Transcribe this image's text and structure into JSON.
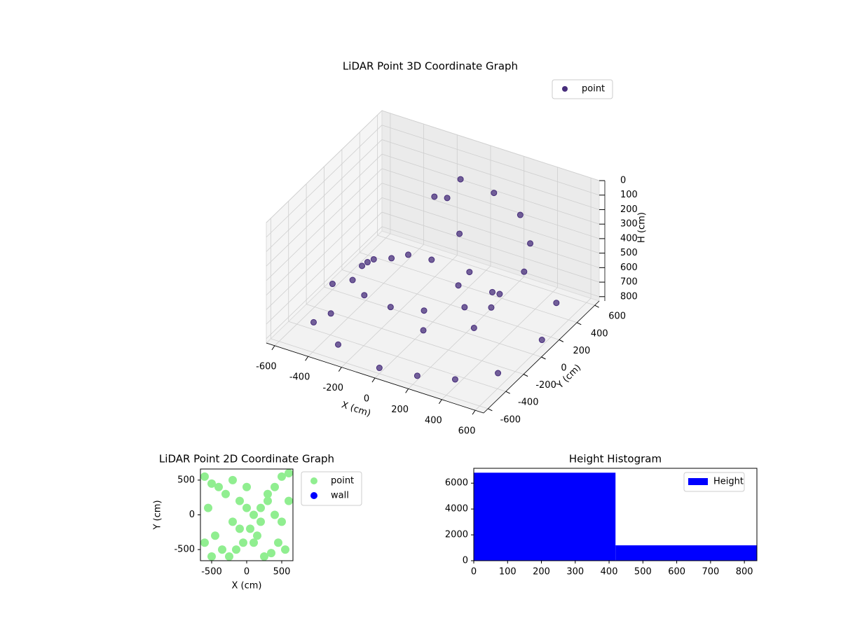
{
  "chart_data": [
    {
      "type": "scatter3d",
      "title": "LiDAR Point 3D Coordinate Graph",
      "xlabel": "X (cm)",
      "ylabel": "Y (cm)",
      "zlabel": "H (cm)",
      "xlim": [
        -650,
        650
      ],
      "ylim": [
        -650,
        650
      ],
      "zlim": [
        0,
        830
      ],
      "z_inverted": true,
      "xticks": [
        -600,
        -400,
        -200,
        0,
        200,
        400,
        600
      ],
      "yticks": [
        -600,
        -400,
        -200,
        0,
        200,
        400,
        600
      ],
      "zticks": [
        0,
        100,
        200,
        300,
        400,
        500,
        600,
        700,
        800
      ],
      "grid": true,
      "legend": "upper right",
      "series": [
        {
          "name": "point",
          "color": "#472d7b",
          "x": [
            -100,
            100,
            300,
            450,
            520,
            480,
            350,
            150,
            -50,
            -250,
            -400,
            -450,
            -380,
            -220,
            -20,
            -500,
            -300,
            0,
            200,
            400,
            550,
            600,
            500,
            -600,
            -550,
            100,
            -200,
            0,
            250,
            -300,
            -150,
            -100,
            50,
            300,
            -450,
            350
          ],
          "y": [
            500,
            500,
            420,
            250,
            50,
            -150,
            -300,
            -380,
            -380,
            -300,
            -150,
            50,
            250,
            400,
            450,
            -400,
            -500,
            -600,
            -550,
            -500,
            -300,
            100,
            450,
            0,
            300,
            100,
            100,
            300,
            200,
            -100,
            300,
            350,
            -200,
            -100,
            -300,
            0
          ],
          "z": [
            180,
            200,
            230,
            270,
            320,
            370,
            420,
            470,
            520,
            560,
            600,
            640,
            680,
            720,
            760,
            780,
            800,
            790,
            800,
            780,
            800,
            790,
            780,
            790,
            800,
            600,
            500,
            400,
            650,
            450,
            200,
            220,
            750,
            700,
            760,
            600
          ]
        }
      ]
    },
    {
      "type": "scatter",
      "title": "LiDAR Point 2D Coordinate Graph",
      "xlabel": "X (cm)",
      "ylabel": "Y (cm)",
      "xlim": [
        -660,
        660
      ],
      "ylim": [
        -660,
        660
      ],
      "xticks": [
        -500,
        0,
        500
      ],
      "yticks": [
        -500,
        0,
        500
      ],
      "legend": "outside right",
      "series": [
        {
          "name": "point",
          "color": "#90ee90",
          "x": [
            -600,
            -500,
            -400,
            -300,
            -200,
            -550,
            -450,
            -100,
            0,
            100,
            200,
            300,
            400,
            500,
            600,
            550,
            450,
            350,
            250,
            150,
            50,
            -50,
            -150,
            -250,
            -350,
            -600,
            -500,
            600,
            500,
            0,
            -100,
            200,
            300,
            400,
            -200,
            100
          ],
          "y": [
            550,
            450,
            400,
            300,
            500,
            100,
            -300,
            200,
            100,
            0,
            -100,
            300,
            400,
            550,
            600,
            -500,
            -400,
            -550,
            -600,
            -300,
            -200,
            -400,
            -500,
            -600,
            -500,
            -400,
            -600,
            200,
            -100,
            400,
            -200,
            100,
            200,
            0,
            -100,
            -400
          ]
        },
        {
          "name": "wall",
          "color": "#0000ff",
          "x": [],
          "y": []
        }
      ]
    },
    {
      "type": "histogram",
      "title": "Height Histogram",
      "bins": [
        0,
        419,
        837
      ],
      "counts": [
        6810,
        1190
      ],
      "color": "#0000ff",
      "name": "Height",
      "xlim": [
        0,
        837
      ],
      "ylim": [
        0,
        7150
      ],
      "xticks": [
        0,
        100,
        200,
        300,
        400,
        500,
        600,
        700,
        800
      ],
      "yticks": [
        0,
        2000,
        4000,
        6000
      ],
      "legend": "upper right"
    }
  ]
}
